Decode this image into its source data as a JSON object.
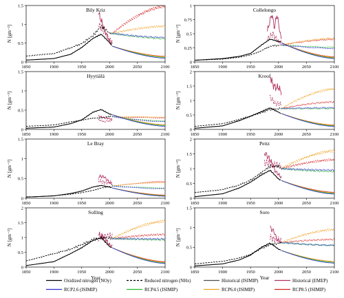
{
  "chart_data": {
    "type": "line",
    "layout": "4x2 small multiples",
    "xlabel": "Year",
    "ylabel": "N [gm⁻²]",
    "xticks": [
      "1850",
      "1900",
      "1950",
      "2000",
      "2050",
      "2100"
    ],
    "xlim": [
      1850,
      2100
    ],
    "legend_placement": "bottom",
    "legend": [
      {
        "label": "Oxidized nitrogen (NOy)",
        "color": "#000000",
        "dash": "solid"
      },
      {
        "label": "Reduced nitrogen (NHx)",
        "color": "#000000",
        "dash": "dashed"
      },
      {
        "label": "Historical (ISIMIP)",
        "color": "#4d4d4d",
        "dash": "solid"
      },
      {
        "label": "Historical (EMEP)",
        "color": "#b03060",
        "dash": "solid"
      },
      {
        "label": "RCP2.6 (ISIMIP)",
        "color": "#2b2bd1",
        "dash": "solid"
      },
      {
        "label": "RCP4.5 (ISIMIP)",
        "color": "#22bb22",
        "dash": "solid"
      },
      {
        "label": "RCP6.0 (ISIMIP)",
        "color": "#f0a020",
        "dash": "solid"
      },
      {
        "label": "RCP8.5 (ISIMIP)",
        "color": "#d62020",
        "dash": "solid"
      }
    ],
    "panels": [
      {
        "title": "Bily Kriz",
        "ylim": [
          0,
          1.5
        ],
        "yticks": [
          "0",
          "0.5",
          "1",
          "1.5"
        ],
        "hist_noy": [
          [
            1850,
            0.05
          ],
          [
            1900,
            0.09
          ],
          [
            1930,
            0.2
          ],
          [
            1950,
            0.38
          ],
          [
            1970,
            0.62
          ],
          [
            1985,
            0.74
          ],
          [
            2000,
            0.52
          ],
          [
            2005,
            0.42
          ]
        ],
        "hist_nhx": [
          [
            1850,
            0.15
          ],
          [
            1900,
            0.22
          ],
          [
            1930,
            0.38
          ],
          [
            1950,
            0.5
          ],
          [
            1970,
            0.72
          ],
          [
            1985,
            0.98
          ],
          [
            2000,
            0.78
          ],
          [
            2005,
            0.76
          ]
        ],
        "emep_noy": [
          [
            1980,
            1.3
          ],
          [
            1990,
            0.9
          ],
          [
            2000,
            0.55
          ],
          [
            2005,
            0.48
          ]
        ],
        "emep_nhx": [
          [
            1980,
            1.0
          ],
          [
            1990,
            0.8
          ],
          [
            2000,
            0.6
          ],
          [
            2005,
            0.55
          ]
        ],
        "end_noy": {
          "rcp26": 0.1,
          "rcp45": 0.12,
          "rcp60": 0.14,
          "rcp85": 0.15
        },
        "end_nhx": {
          "rcp26": 0.65,
          "rcp45": 0.62,
          "rcp60": 0.95,
          "rcp85": 1.48
        }
      },
      {
        "title": "Collelongo",
        "ylim": [
          0,
          1
        ],
        "yticks": [
          "0",
          "0.25",
          "0.5",
          "0.75",
          "1"
        ],
        "hist_noy": [
          [
            1850,
            0.03
          ],
          [
            1900,
            0.06
          ],
          [
            1930,
            0.1
          ],
          [
            1950,
            0.15
          ],
          [
            1970,
            0.3
          ],
          [
            1985,
            0.4
          ],
          [
            2000,
            0.36
          ],
          [
            2005,
            0.34
          ]
        ],
        "hist_nhx": [
          [
            1850,
            0.03
          ],
          [
            1900,
            0.05
          ],
          [
            1930,
            0.08
          ],
          [
            1950,
            0.12
          ],
          [
            1970,
            0.2
          ],
          [
            1985,
            0.28
          ],
          [
            2000,
            0.3
          ],
          [
            2005,
            0.3
          ]
        ],
        "emep_noy": [
          [
            1980,
            0.55
          ],
          [
            1988,
            0.85
          ],
          [
            1993,
            0.6
          ],
          [
            1997,
            0.85
          ],
          [
            2005,
            0.4
          ]
        ],
        "emep_nhx": [
          [
            1980,
            0.4
          ],
          [
            1990,
            0.5
          ],
          [
            2000,
            0.35
          ],
          [
            2005,
            0.35
          ]
        ],
        "end_noy": {
          "rcp26": 0.06,
          "rcp45": 0.07,
          "rcp60": 0.08,
          "rcp85": 0.09
        },
        "end_nhx": {
          "rcp26": 0.24,
          "rcp45": 0.26,
          "rcp60": 0.42,
          "rcp85": 0.4
        }
      },
      {
        "title": "Hyytiälä",
        "ylim": [
          0,
          1.5
        ],
        "yticks": [
          "0",
          "0.5",
          "1",
          "1.5"
        ],
        "hist_noy": [
          [
            1850,
            0.03
          ],
          [
            1900,
            0.06
          ],
          [
            1930,
            0.15
          ],
          [
            1950,
            0.25
          ],
          [
            1970,
            0.45
          ],
          [
            1985,
            0.52
          ],
          [
            2000,
            0.4
          ],
          [
            2005,
            0.38
          ]
        ],
        "hist_nhx": [
          [
            1850,
            0.08
          ],
          [
            1900,
            0.12
          ],
          [
            1930,
            0.2
          ],
          [
            1950,
            0.24
          ],
          [
            1970,
            0.28
          ],
          [
            1985,
            0.3
          ],
          [
            2000,
            0.32
          ],
          [
            2005,
            0.33
          ]
        ],
        "emep_noy": [
          [
            1980,
            0.35
          ],
          [
            1990,
            0.3
          ],
          [
            2000,
            0.28
          ],
          [
            2005,
            0.25
          ]
        ],
        "emep_nhx": [
          [
            1980,
            0.25
          ],
          [
            1990,
            0.2
          ],
          [
            2000,
            0.22
          ],
          [
            2005,
            0.22
          ]
        ],
        "end_noy": {
          "rcp26": 0.08,
          "rcp45": 0.1,
          "rcp60": 0.12,
          "rcp85": 0.12
        },
        "end_nhx": {
          "rcp26": 0.2,
          "rcp45": 0.22,
          "rcp60": 0.32,
          "rcp85": 0.3
        }
      },
      {
        "title": "Kroof",
        "ylim": [
          0,
          2
        ],
        "yticks": [
          "0",
          "0.5",
          "1",
          "1.5",
          "2"
        ],
        "hist_noy": [
          [
            1850,
            0.04
          ],
          [
            1900,
            0.12
          ],
          [
            1930,
            0.3
          ],
          [
            1950,
            0.45
          ],
          [
            1970,
            0.62
          ],
          [
            1985,
            0.75
          ],
          [
            2000,
            0.6
          ],
          [
            2005,
            0.55
          ]
        ],
        "hist_nhx": [
          [
            1850,
            0.1
          ],
          [
            1900,
            0.2
          ],
          [
            1930,
            0.35
          ],
          [
            1950,
            0.48
          ],
          [
            1970,
            0.6
          ],
          [
            1985,
            0.7
          ],
          [
            2000,
            0.72
          ],
          [
            2005,
            0.72
          ]
        ],
        "emep_noy": [
          [
            1985,
            1.85
          ],
          [
            1990,
            1.55
          ],
          [
            1995,
            1.45
          ],
          [
            2000,
            1.45
          ],
          [
            2005,
            1.3
          ]
        ],
        "emep_nhx": [
          [
            1985,
            1.1
          ],
          [
            1995,
            0.9
          ],
          [
            2005,
            0.85
          ]
        ],
        "end_noy": {
          "rcp26": 0.1,
          "rcp45": 0.12,
          "rcp60": 0.14,
          "rcp85": 0.15
        },
        "end_nhx": {
          "rcp26": 0.75,
          "rcp45": 0.72,
          "rcp60": 1.4,
          "rcp85": 0.95
        }
      },
      {
        "title": "Le Bray",
        "ylim": [
          0,
          1.5
        ],
        "yticks": [
          "0",
          "0.5",
          "1",
          "1.5"
        ],
        "hist_noy": [
          [
            1850,
            0.03
          ],
          [
            1900,
            0.06
          ],
          [
            1930,
            0.12
          ],
          [
            1950,
            0.18
          ],
          [
            1970,
            0.28
          ],
          [
            1985,
            0.32
          ],
          [
            2000,
            0.28
          ],
          [
            2005,
            0.26
          ]
        ],
        "hist_nhx": [
          [
            1850,
            0.03
          ],
          [
            1900,
            0.06
          ],
          [
            1930,
            0.1
          ],
          [
            1950,
            0.14
          ],
          [
            1970,
            0.2
          ],
          [
            1985,
            0.26
          ],
          [
            2000,
            0.3
          ],
          [
            2005,
            0.31
          ]
        ],
        "emep_noy": [
          [
            1980,
            0.55
          ],
          [
            1990,
            0.55
          ],
          [
            2000,
            0.4
          ],
          [
            2005,
            0.35
          ]
        ],
        "emep_nhx": [
          [
            1980,
            0.45
          ],
          [
            1990,
            0.4
          ],
          [
            2000,
            0.4
          ],
          [
            2005,
            0.4
          ]
        ],
        "end_noy": {
          "rcp26": 0.05,
          "rcp45": 0.06,
          "rcp60": 0.07,
          "rcp85": 0.08
        },
        "end_nhx": {
          "rcp26": 0.24,
          "rcp45": 0.26,
          "rcp60": 0.4,
          "rcp85": 0.42
        }
      },
      {
        "title": "Peitz",
        "ylim": [
          0,
          2
        ],
        "yticks": [
          "0",
          "0.5",
          "1",
          "1.5",
          "2"
        ],
        "hist_noy": [
          [
            1850,
            0.05
          ],
          [
            1900,
            0.15
          ],
          [
            1930,
            0.35
          ],
          [
            1950,
            0.55
          ],
          [
            1970,
            0.8
          ],
          [
            1985,
            0.95
          ],
          [
            2000,
            0.65
          ],
          [
            2005,
            0.6
          ]
        ],
        "hist_nhx": [
          [
            1850,
            0.2
          ],
          [
            1900,
            0.3
          ],
          [
            1930,
            0.45
          ],
          [
            1950,
            0.6
          ],
          [
            1970,
            0.85
          ],
          [
            1985,
            1.05
          ],
          [
            2000,
            1.05
          ],
          [
            2005,
            1.0
          ]
        ],
        "emep_noy": [
          [
            1975,
            1.55
          ],
          [
            1985,
            1.3
          ],
          [
            1995,
            0.9
          ],
          [
            2005,
            0.7
          ]
        ],
        "emep_nhx": [
          [
            1975,
            1.2
          ],
          [
            1990,
            1.15
          ],
          [
            2005,
            1.1
          ]
        ],
        "end_noy": {
          "rcp26": 0.14,
          "rcp45": 0.16,
          "rcp60": 0.18,
          "rcp85": 0.2
        },
        "end_nhx": {
          "rcp26": 0.95,
          "rcp45": 0.9,
          "rcp60": 1.6,
          "rcp85": 1.3
        }
      },
      {
        "title": "Solling",
        "ylim": [
          0,
          2
        ],
        "yticks": [
          "0",
          "0.5",
          "1",
          "1.5",
          "2"
        ],
        "hist_noy": [
          [
            1850,
            0.05
          ],
          [
            1900,
            0.18
          ],
          [
            1930,
            0.45
          ],
          [
            1950,
            0.65
          ],
          [
            1970,
            0.9
          ],
          [
            1985,
            1.0
          ],
          [
            2000,
            0.7
          ],
          [
            2005,
            0.65
          ]
        ],
        "hist_nhx": [
          [
            1850,
            0.2
          ],
          [
            1900,
            0.45
          ],
          [
            1930,
            0.62
          ],
          [
            1950,
            0.78
          ],
          [
            1970,
            0.95
          ],
          [
            1985,
            1.0
          ],
          [
            2000,
            0.98
          ],
          [
            2005,
            0.96
          ]
        ],
        "emep_noy": [
          [
            1980,
            1.1
          ],
          [
            1990,
            1.0
          ],
          [
            2000,
            0.75
          ],
          [
            2005,
            0.7
          ]
        ],
        "emep_nhx": [
          [
            1980,
            0.95
          ],
          [
            1990,
            1.05
          ],
          [
            2000,
            1.05
          ],
          [
            2005,
            1.05
          ]
        ],
        "end_noy": {
          "rcp26": 0.12,
          "rcp45": 0.14,
          "rcp60": 0.16,
          "rcp85": 0.18
        },
        "end_nhx": {
          "rcp26": 0.95,
          "rcp45": 0.92,
          "rcp60": 1.55,
          "rcp85": 1.1
        }
      },
      {
        "title": "Soro",
        "ylim": [
          0,
          1.5
        ],
        "yticks": [
          "0",
          "0.5",
          "1",
          "1.5"
        ],
        "hist_noy": [
          [
            1850,
            0.03
          ],
          [
            1900,
            0.08
          ],
          [
            1930,
            0.18
          ],
          [
            1950,
            0.3
          ],
          [
            1970,
            0.5
          ],
          [
            1985,
            0.6
          ],
          [
            2000,
            0.45
          ],
          [
            2005,
            0.42
          ]
        ],
        "hist_nhx": [
          [
            1850,
            0.08
          ],
          [
            1900,
            0.14
          ],
          [
            1930,
            0.22
          ],
          [
            1950,
            0.32
          ],
          [
            1970,
            0.48
          ],
          [
            1985,
            0.58
          ],
          [
            2000,
            0.62
          ],
          [
            2005,
            0.62
          ]
        ],
        "emep_noy": [
          [
            1985,
            1.0
          ],
          [
            1992,
            0.9
          ],
          [
            1997,
            0.7
          ],
          [
            2005,
            0.6
          ]
        ],
        "emep_nhx": [
          [
            1985,
            0.75
          ],
          [
            1995,
            0.7
          ],
          [
            2005,
            0.68
          ]
        ],
        "end_noy": {
          "rcp26": 0.1,
          "rcp45": 0.12,
          "rcp60": 0.14,
          "rcp85": 0.14
        },
        "end_nhx": {
          "rcp26": 0.55,
          "rcp45": 0.55,
          "rcp60": 0.95,
          "rcp85": 0.7
        }
      }
    ]
  }
}
